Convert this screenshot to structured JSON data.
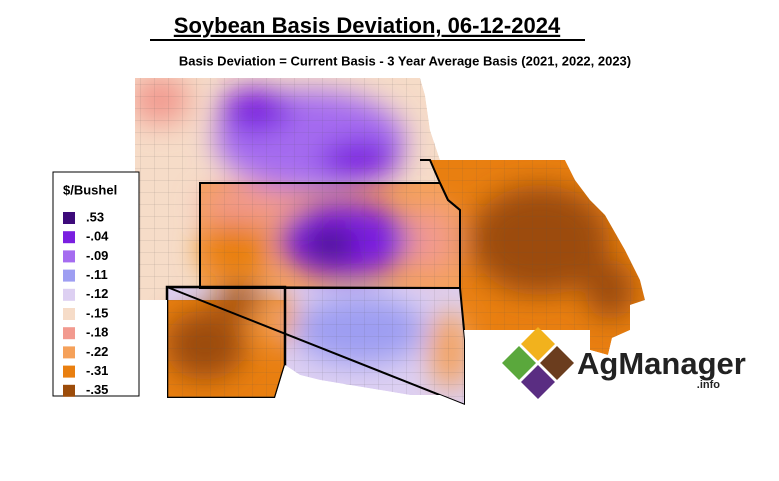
{
  "title": "Soybean Basis Deviation, 06-12-2024",
  "subtitle": "Basis Deviation = Current Basis - 3 Year Average Basis (2021, 2022, 2023)",
  "legend": {
    "title": "$/Bushel",
    "items": [
      {
        "label": ".53",
        "color": "#3d0a7a"
      },
      {
        "label": "-.04",
        "color": "#7a1fe0"
      },
      {
        "label": "-.09",
        "color": "#a56cf0"
      },
      {
        "label": "-.11",
        "color": "#9e9ef2"
      },
      {
        "label": "-.12",
        "color": "#ddd0f2"
      },
      {
        "label": "-.15",
        "color": "#f6dcc8"
      },
      {
        "label": "-.18",
        "color": "#f29a8f"
      },
      {
        "label": "-.22",
        "color": "#f5a15a"
      },
      {
        "label": "-.31",
        "color": "#e97f10"
      },
      {
        "label": "-.35",
        "color": "#9c4c0a"
      }
    ]
  },
  "logo": {
    "name": "AgManager",
    "suffix": ".info"
  }
}
